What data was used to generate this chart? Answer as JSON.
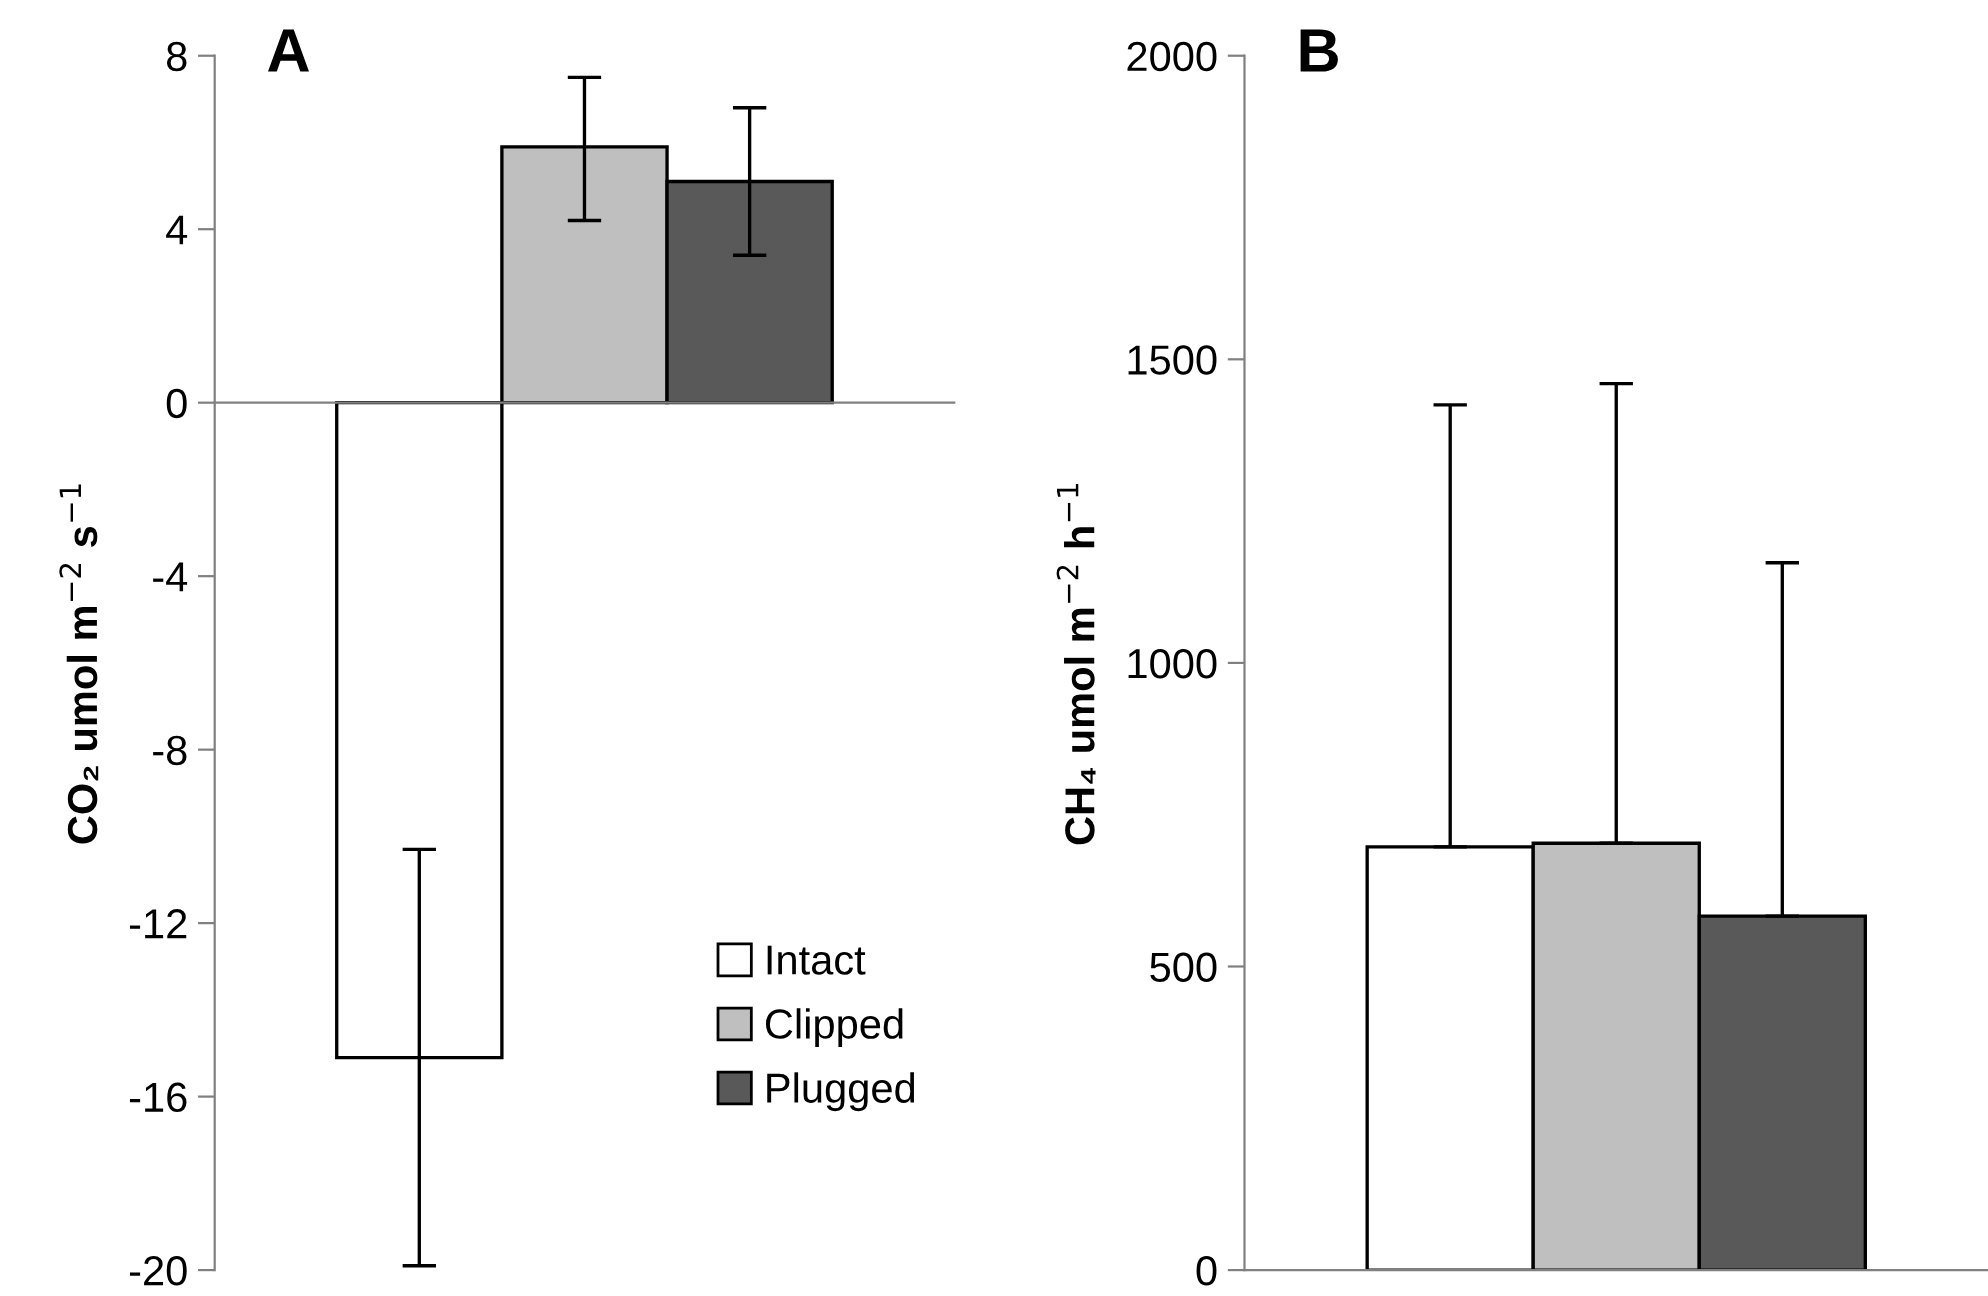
{
  "chart_data": [
    {
      "type": "bar",
      "title": "A",
      "ylabel": "CO₂ umol m$^{−2}$ s$^{−1}$",
      "categories": [
        null
      ],
      "series": [
        {
          "name": "Intact",
          "color": "#ffffff",
          "values": [
            -15.1
          ],
          "errors": [
            [
              -19.9,
              -10.3
            ]
          ]
        },
        {
          "name": "Clipped",
          "color": "#bfbfbf",
          "values": [
            5.9
          ],
          "errors": [
            [
              4.2,
              7.5
            ]
          ]
        },
        {
          "name": "Plugged",
          "color": "#595959",
          "values": [
            5.1
          ],
          "errors": [
            [
              3.4,
              6.8
            ]
          ]
        }
      ],
      "ylim": [
        -20,
        8
      ],
      "yticks": [
        -20,
        -16,
        -12,
        -8,
        -4,
        0,
        4,
        8
      ],
      "legend": "bottom right"
    },
    {
      "type": "bar",
      "title": "B",
      "ylabel": "CH₄ umol m$^{−2}$ h$^{−1}$",
      "categories": [
        null
      ],
      "series": [
        {
          "color": "#ffffff",
          "values": [
            697
          ],
          "errors": [
            [
              697,
              1425
            ]
          ]
        },
        {
          "color": "#bfbfbf",
          "values": [
            703
          ],
          "errors": [
            [
              703,
              1460
            ]
          ]
        },
        {
          "color": "#595959",
          "values": [
            583
          ],
          "errors": [
            [
              583,
              1165
            ]
          ]
        }
      ],
      "ylim": [
        0,
        2000
      ],
      "yticks": [
        0,
        500,
        1000,
        1500,
        2000
      ],
      "legend": false
    }
  ]
}
